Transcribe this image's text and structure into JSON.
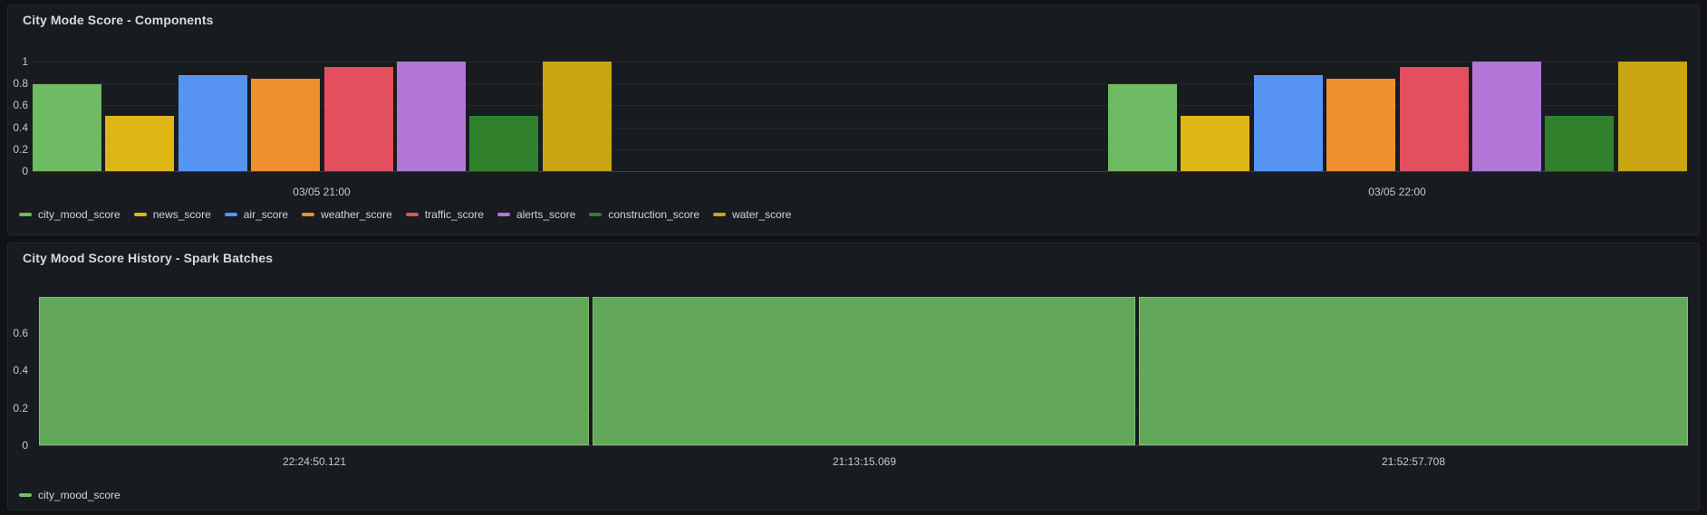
{
  "panels": {
    "components": {
      "title": "City Mode Score - Components"
    },
    "history": {
      "title": "City Mood Score History - Spark Batches"
    }
  },
  "chart_data": [
    {
      "id": "components",
      "type": "bar",
      "title": "City Mode Score - Components",
      "categories": [
        "03/05 21:00",
        "03/05 22:00"
      ],
      "series": [
        {
          "name": "city_mood_score",
          "color": "#6FBB63",
          "values": [
            0.79,
            0.79
          ]
        },
        {
          "name": "news_score",
          "color": "#DDB714",
          "values": [
            0.5,
            0.5
          ]
        },
        {
          "name": "air_score",
          "color": "#5794F2",
          "values": [
            0.88,
            0.88
          ]
        },
        {
          "name": "weather_score",
          "color": "#EE9030",
          "values": [
            0.84,
            0.84
          ]
        },
        {
          "name": "traffic_score",
          "color": "#E34F5D",
          "values": [
            0.95,
            0.95
          ]
        },
        {
          "name": "alerts_score",
          "color": "#B277D6",
          "values": [
            1.0,
            1.0
          ]
        },
        {
          "name": "construction_score",
          "color": "#31802C",
          "values": [
            0.5,
            0.5
          ]
        },
        {
          "name": "water_score",
          "color": "#C9A513",
          "values": [
            1.0,
            1.0
          ]
        }
      ],
      "yticks": [
        0,
        0.2,
        0.4,
        0.6,
        0.8,
        1
      ],
      "ylim": [
        0,
        1.1
      ],
      "grid": true,
      "legend_position": "bottom"
    },
    {
      "id": "history",
      "type": "bar",
      "title": "City Mood Score History - Spark Batches",
      "categories": [
        "22:24:50.121",
        "21:13:15.069",
        "21:52:57.708"
      ],
      "series": [
        {
          "name": "city_mood_score",
          "color": "#73BF69",
          "fill": "#63A75A",
          "border": "#7FC173",
          "values": [
            0.79,
            0.79,
            0.79
          ]
        }
      ],
      "yticks": [
        0,
        0.2,
        0.4,
        0.6
      ],
      "ylim": [
        0,
        0.83
      ],
      "grid": true,
      "legend_position": "bottom"
    }
  ]
}
